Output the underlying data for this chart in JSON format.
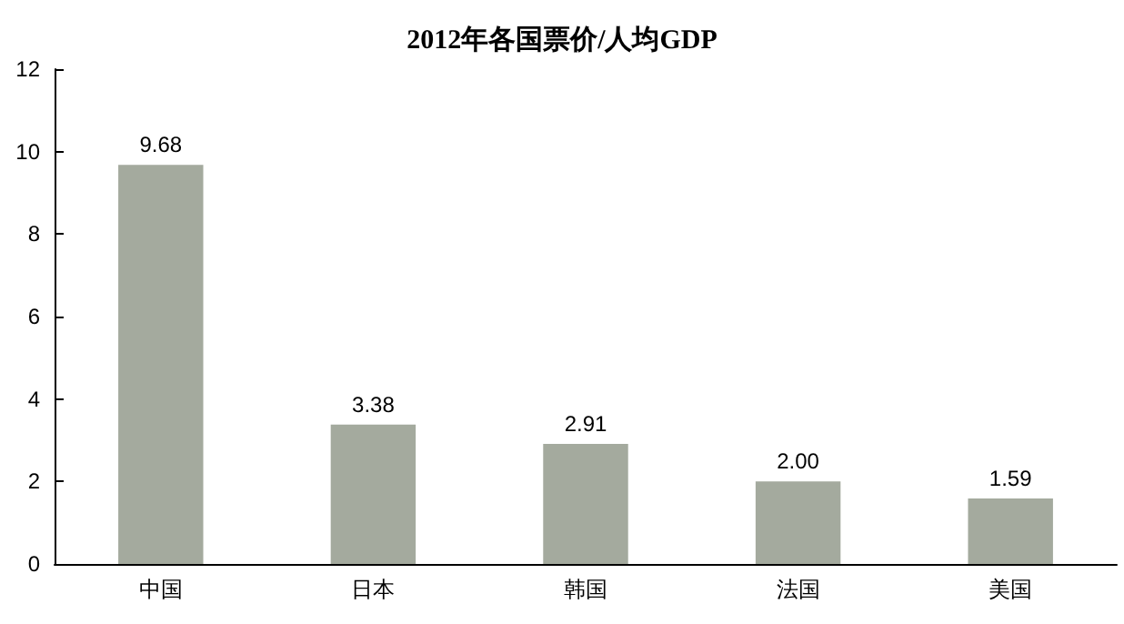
{
  "chart_data": {
    "type": "bar",
    "title": "2012年各国票价/人均GDP",
    "categories": [
      "中国",
      "日本",
      "韩国",
      "法国",
      "美国"
    ],
    "values": [
      9.68,
      3.38,
      2.91,
      2.0,
      1.59
    ],
    "value_labels": [
      "9.68",
      "3.38",
      "2.91",
      "2.00",
      "1.59"
    ],
    "color": "#a4aa9e",
    "ylim": [
      0,
      12
    ],
    "yticks": [
      0,
      2,
      4,
      6,
      8,
      10,
      12
    ],
    "grid": false
  }
}
